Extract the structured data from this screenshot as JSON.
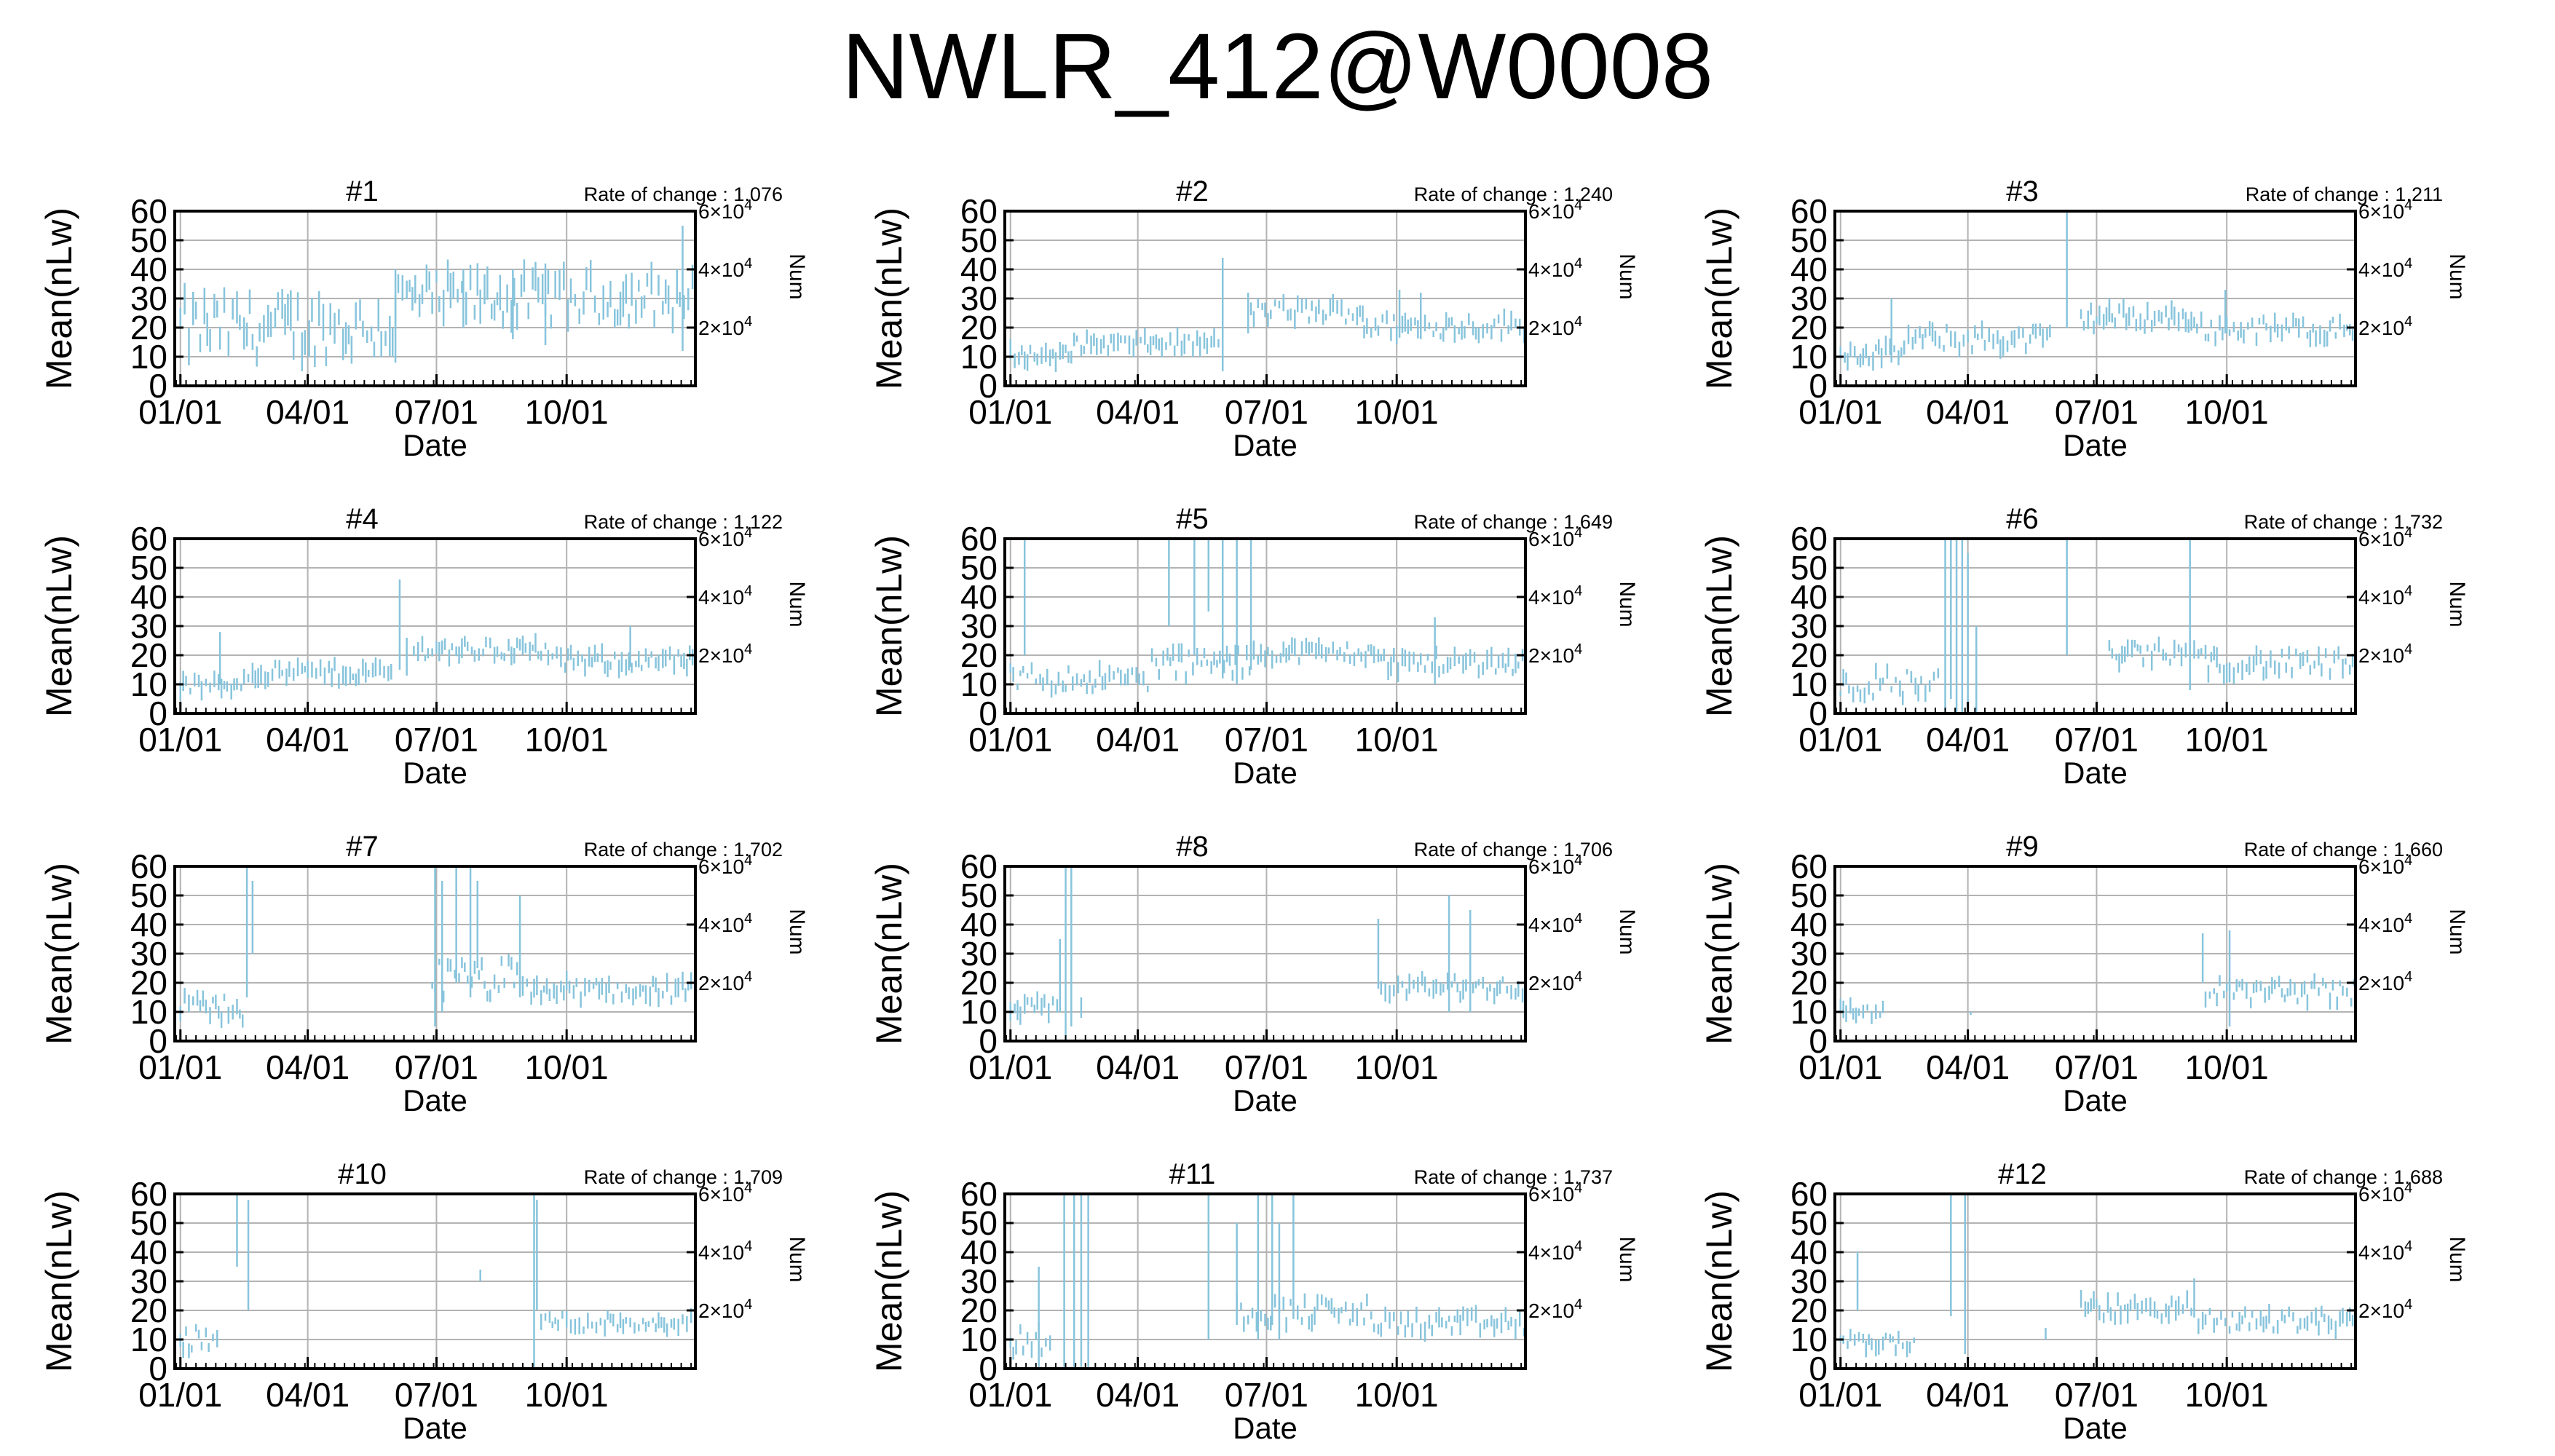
{
  "figure": {
    "title": "NWLR_412@W0008"
  },
  "colors": {
    "bar": "#87c4dc",
    "grid": "#b3b3b3",
    "axis": "#000000"
  },
  "chart_data": {
    "type": "bar",
    "panel_count": 12,
    "xlabel": "Date",
    "ylabel_left": "Mean(nLw)",
    "ylabel_right": "Num",
    "x_tick_labels": [
      "01/01",
      "04/01",
      "07/01",
      "10/01"
    ],
    "x_tick_days": [
      0,
      90,
      181,
      273
    ],
    "xlim_days": [
      -4,
      364
    ],
    "y_ticks": [
      "0",
      "10",
      "20",
      "30",
      "40",
      "50",
      "60"
    ],
    "y_tick_values": [
      0,
      10,
      20,
      30,
      40,
      50,
      60
    ],
    "ylim": [
      0,
      60
    ],
    "right_ticks": [
      {
        "mant": "6×10",
        "exp": "4",
        "y": 60
      },
      {
        "mant": "4×10",
        "exp": "4",
        "y": 40
      },
      {
        "mant": "2×10",
        "exp": "4",
        "y": 20
      }
    ],
    "grid": true,
    "rate_prefix": "Rate of change : ",
    "panels": [
      {
        "label": "#1",
        "rate": "1.076",
        "spikes": [
          [
            152,
            8,
            40
          ],
          [
            200,
            20,
            40
          ],
          [
            235,
            16,
            40
          ],
          [
            258,
            14,
            42
          ],
          [
            355,
            12,
            55
          ]
        ],
        "segments": [
          [
            0,
            152,
            10,
            30,
            14
          ],
          [
            152,
            365,
            22,
            38,
            13
          ]
        ]
      },
      {
        "label": "#2",
        "rate": "1.240",
        "spikes": [
          [
            150,
            5,
            44
          ],
          [
            168,
            18,
            32
          ],
          [
            275,
            22,
            33
          ],
          [
            290,
            16,
            32
          ]
        ],
        "segments": [
          [
            0,
            45,
            8,
            13,
            7
          ],
          [
            45,
            150,
            12,
            17,
            7
          ],
          [
            170,
            250,
            22,
            29,
            7
          ],
          [
            250,
            365,
            17,
            24,
            7
          ]
        ]
      },
      {
        "label": "#3",
        "rate": "1.211",
        "spikes": [
          [
            36,
            8,
            30
          ],
          [
            160,
            20,
            60
          ],
          [
            190,
            22,
            30
          ],
          [
            272,
            18,
            33
          ]
        ],
        "segments": [
          [
            0,
            45,
            8,
            14,
            7
          ],
          [
            45,
            150,
            12,
            20,
            7
          ],
          [
            170,
            250,
            20,
            27,
            7
          ],
          [
            250,
            365,
            16,
            23,
            7
          ]
        ]
      },
      {
        "label": "#4",
        "rate": "1.122",
        "spikes": [
          [
            28,
            10,
            28
          ],
          [
            155,
            15,
            46
          ],
          [
            160,
            13,
            26
          ],
          [
            318,
            16,
            30
          ]
        ],
        "segments": [
          [
            0,
            45,
            7,
            12,
            7
          ],
          [
            45,
            150,
            11,
            17,
            7
          ],
          [
            165,
            260,
            19,
            25,
            7
          ],
          [
            260,
            365,
            15,
            21,
            7
          ]
        ]
      },
      {
        "label": "#5",
        "rate": "1.649",
        "spikes": [
          [
            112,
            30,
            60
          ],
          [
            130,
            20,
            60
          ],
          [
            140,
            35,
            60
          ],
          [
            150,
            12,
            60
          ],
          [
            160,
            10,
            60
          ],
          [
            170,
            15,
            60
          ],
          [
            300,
            10,
            33
          ],
          [
            10,
            20,
            60
          ]
        ],
        "segments": [
          [
            0,
            100,
            8,
            16,
            6
          ],
          [
            100,
            170,
            12,
            22,
            7
          ],
          [
            170,
            260,
            18,
            24,
            7
          ],
          [
            260,
            365,
            14,
            21,
            7
          ]
        ]
      },
      {
        "label": "#6",
        "rate": "1.732",
        "spikes": [
          [
            74,
            0,
            60
          ],
          [
            78,
            5,
            60
          ],
          [
            82,
            0,
            60
          ],
          [
            86,
            0,
            60
          ],
          [
            90,
            0,
            55
          ],
          [
            96,
            0,
            30
          ],
          [
            160,
            20,
            60
          ],
          [
            247,
            8,
            60
          ]
        ],
        "segments": [
          [
            0,
            70,
            5,
            15,
            6
          ],
          [
            190,
            260,
            17,
            24,
            7
          ],
          [
            260,
            365,
            13,
            21,
            7
          ]
        ]
      },
      {
        "label": "#7",
        "rate": "1.702",
        "spikes": [
          [
            47,
            15,
            60
          ],
          [
            51,
            30,
            55
          ],
          [
            180,
            5,
            60
          ],
          [
            185,
            10,
            55
          ],
          [
            195,
            20,
            60
          ],
          [
            205,
            15,
            60
          ],
          [
            210,
            25,
            55
          ],
          [
            240,
            15,
            50
          ]
        ],
        "segments": [
          [
            0,
            46,
            6,
            16,
            6
          ],
          [
            178,
            240,
            14,
            28,
            5
          ],
          [
            240,
            365,
            14,
            21,
            7
          ]
        ]
      },
      {
        "label": "#8",
        "rate": "1.706",
        "spikes": [
          [
            35,
            10,
            35
          ],
          [
            39,
            0,
            60
          ],
          [
            43,
            5,
            60
          ],
          [
            50,
            8,
            15
          ],
          [
            260,
            18,
            42
          ],
          [
            310,
            10,
            50
          ],
          [
            325,
            10,
            45
          ]
        ],
        "segments": [
          [
            0,
            35,
            8,
            14,
            7
          ],
          [
            262,
            365,
            15,
            22,
            7
          ]
        ]
      },
      {
        "label": "#9",
        "rate": "1.660",
        "spikes": [
          [
            256,
            20,
            37
          ],
          [
            275,
            5,
            38
          ],
          [
            92,
            9,
            10
          ]
        ],
        "segments": [
          [
            0,
            32,
            7,
            13,
            6
          ],
          [
            258,
            365,
            13,
            21,
            6
          ]
        ]
      },
      {
        "label": "#10",
        "rate": "1.709",
        "spikes": [
          [
            40,
            35,
            60
          ],
          [
            48,
            20,
            58
          ],
          [
            212,
            30,
            34
          ],
          [
            250,
            0,
            60
          ],
          [
            252,
            20,
            58
          ]
        ],
        "segments": [
          [
            0,
            28,
            6,
            14,
            6
          ],
          [
            255,
            365,
            13,
            19,
            6
          ]
        ]
      },
      {
        "label": "#11",
        "rate": "1.737",
        "spikes": [
          [
            20,
            0,
            35
          ],
          [
            38,
            0,
            60
          ],
          [
            45,
            0,
            60
          ],
          [
            50,
            0,
            60
          ],
          [
            55,
            0,
            60
          ],
          [
            140,
            10,
            60
          ],
          [
            160,
            15,
            50
          ],
          [
            175,
            10,
            60
          ],
          [
            185,
            15,
            60
          ],
          [
            190,
            10,
            50
          ],
          [
            200,
            20,
            60
          ]
        ],
        "segments": [
          [
            0,
            30,
            5,
            14,
            6
          ],
          [
            160,
            255,
            15,
            24,
            7
          ],
          [
            255,
            365,
            12,
            19,
            7
          ]
        ]
      },
      {
        "label": "#12",
        "rate": "1.688",
        "spikes": [
          [
            12,
            20,
            40
          ],
          [
            78,
            18,
            60
          ],
          [
            88,
            5,
            60
          ],
          [
            145,
            10,
            14
          ],
          [
            250,
            20,
            31
          ]
        ],
        "segments": [
          [
            0,
            55,
            6,
            12,
            6
          ],
          [
            170,
            250,
            17,
            24,
            7
          ],
          [
            250,
            365,
            13,
            20,
            7
          ]
        ]
      }
    ]
  }
}
